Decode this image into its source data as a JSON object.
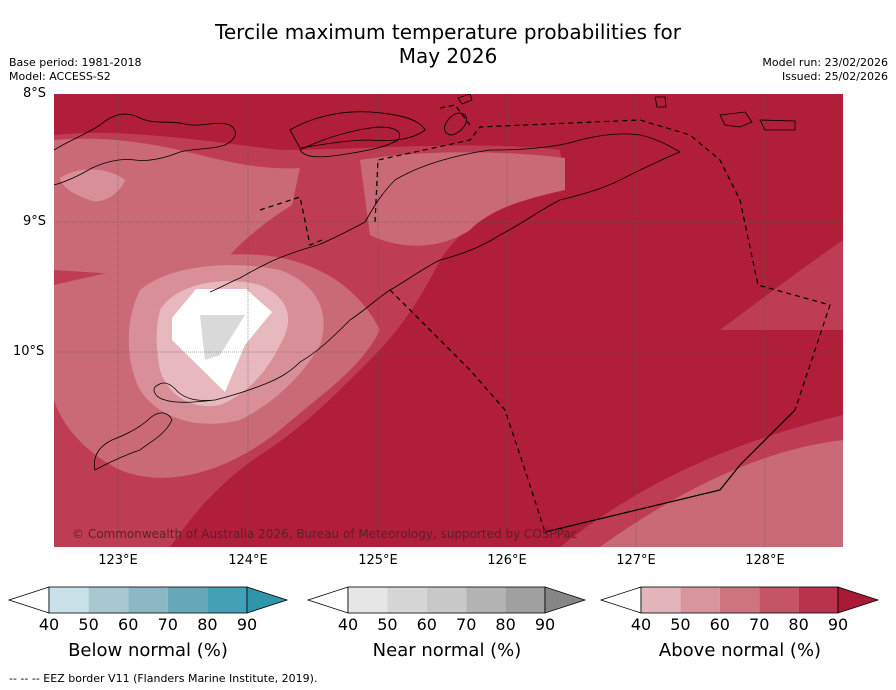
{
  "title": {
    "line1": "Tercile maximum temperature probabilities for",
    "line2": "May 2026"
  },
  "meta": {
    "base_period": "Base period: 1981-2018",
    "model": "Model: ACCESS-S2",
    "model_run": "Model run: 23/02/2026",
    "issued": "Issued: 25/02/2026"
  },
  "map": {
    "latitude_labels": [
      "8°S",
      "9°S",
      "10°S"
    ],
    "longitude_labels": [
      "123°E",
      "124°E",
      "125°E",
      "126°E",
      "127°E",
      "128°E"
    ],
    "copyright": "© Commonwealth of Australia 2026, Bureau of Meteorology, supported by COSPPac",
    "colors": {
      "above_90": "#b01e3a",
      "above_80": "#bf3d54",
      "above_70": "#c96a76",
      "above_60": "#d98f98",
      "above_50": "#e8b8bf",
      "white": "#ffffff",
      "near_50": "#d9d9d9"
    }
  },
  "colorbars": [
    {
      "name": "below",
      "label": "Below normal (%)",
      "ticks": [
        "40",
        "50",
        "60",
        "70",
        "80",
        "90"
      ],
      "colors": [
        "#ffffff",
        "#c9e2ea",
        "#a7c8cf",
        "#8ab8c4",
        "#66a8b8",
        "#44a0b4",
        "#2e96a8"
      ]
    },
    {
      "name": "near",
      "label": "Near normal (%)",
      "ticks": [
        "40",
        "50",
        "60",
        "70",
        "80",
        "90"
      ],
      "colors": [
        "#ffffff",
        "#e6e6e6",
        "#d6d6d6",
        "#c8c8c8",
        "#b3b3b3",
        "#a0a0a0",
        "#868686"
      ]
    },
    {
      "name": "above",
      "label": "Above normal (%)",
      "ticks": [
        "40",
        "50",
        "60",
        "70",
        "80",
        "90"
      ],
      "colors": [
        "#ffffff",
        "#e2b5bd",
        "#d9959e",
        "#cd747f",
        "#c45564",
        "#b8334b",
        "#a81a36"
      ]
    }
  ],
  "footnote": "--  --  -- EEZ border V11 (Flanders Marine Institute, 2019)."
}
